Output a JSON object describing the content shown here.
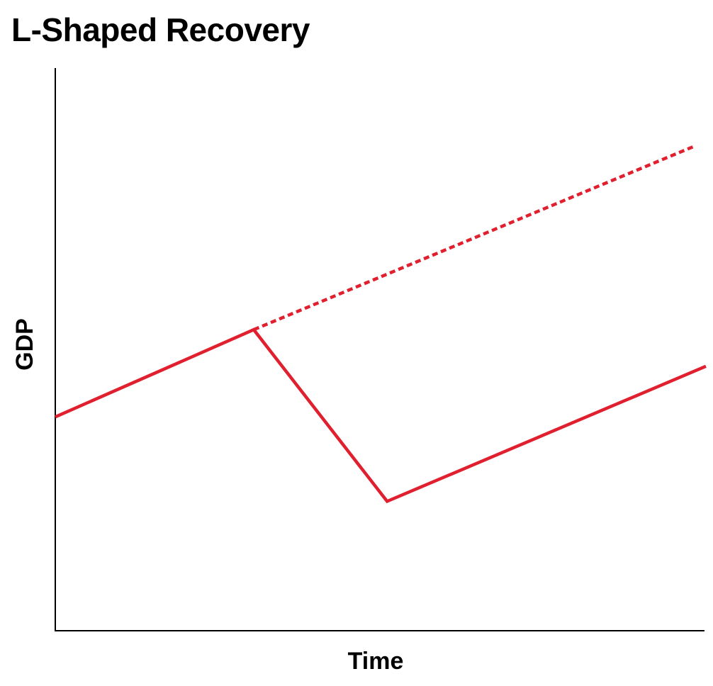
{
  "chart_data": {
    "type": "line",
    "title": "L-Shaped Recovery",
    "xlabel": "Time",
    "ylabel": "GDP",
    "xlim": [
      0,
      100
    ],
    "ylim": [
      0,
      100
    ],
    "grid": false,
    "legend": "none",
    "x_ticks": [],
    "y_ticks": [],
    "series": [
      {
        "style": "solid",
        "color": "#e0202e",
        "points": [
          [
            0,
            38
          ],
          [
            30.5,
            53.5
          ],
          [
            51,
            23
          ],
          [
            100,
            47
          ]
        ]
      },
      {
        "style": "dotted",
        "color": "#e0202e",
        "points": [
          [
            30.5,
            53.5
          ],
          [
            98,
            86
          ]
        ]
      }
    ]
  }
}
